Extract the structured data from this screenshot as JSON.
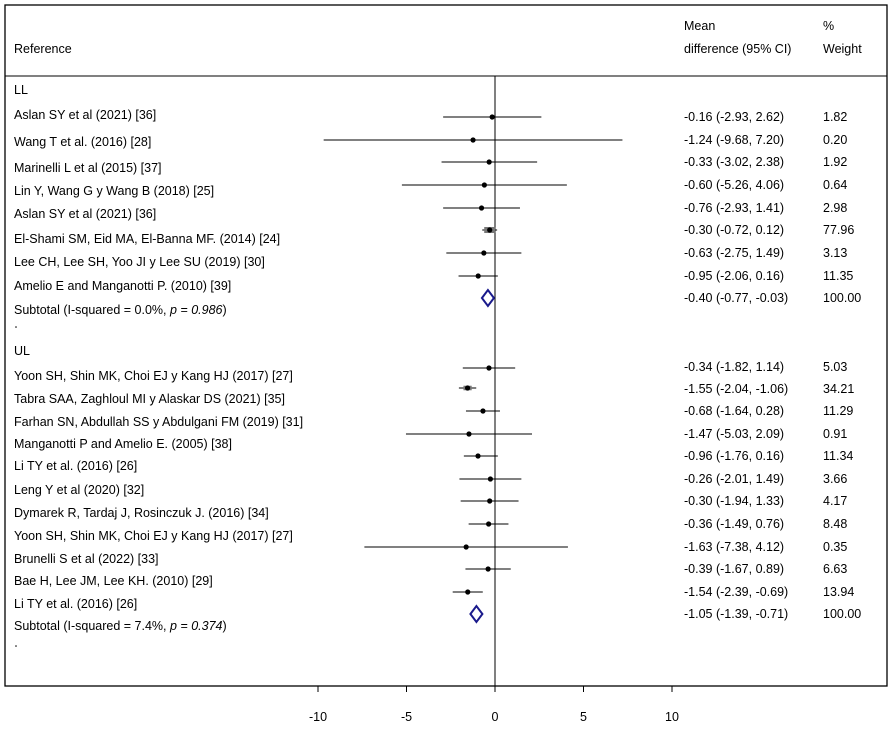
{
  "header": {
    "reference": "Reference",
    "effect_line1": "Mean",
    "effect_line2": "difference (95% CI)",
    "weight_line1": "%",
    "weight_line2": "Weight"
  },
  "chart_data": {
    "type": "forest",
    "xlim": [
      -10,
      10
    ],
    "x_ticks": [
      -10,
      -5,
      0,
      5,
      10
    ],
    "groups": [
      {
        "name": "LL",
        "studies": [
          {
            "label": "Aslan SY et al (2021) [36]",
            "est": -0.16,
            "lo": -2.93,
            "hi": 2.62,
            "ci_text": "-0.16 (-2.93, 2.62)",
            "weight": "1.82"
          },
          {
            "label": "Wang T et al. (2016) [28]",
            "est": -1.24,
            "lo": -9.68,
            "hi": 7.2,
            "ci_text": "-1.24 (-9.68, 7.20)",
            "weight": "0.20"
          },
          {
            "label": "Marinelli L et al (2015) [37]",
            "est": -0.33,
            "lo": -3.02,
            "hi": 2.38,
            "ci_text": "-0.33 (-3.02, 2.38)",
            "weight": "1.92"
          },
          {
            "label": "Lin Y, Wang G y Wang B (2018) [25]",
            "est": -0.6,
            "lo": -5.26,
            "hi": 4.06,
            "ci_text": "-0.60 (-5.26, 4.06)",
            "weight": "0.64"
          },
          {
            "label": "Aslan SY et al (2021) [36]",
            "est": -0.76,
            "lo": -2.93,
            "hi": 1.41,
            "ci_text": "-0.76 (-2.93, 1.41)",
            "weight": "2.98"
          },
          {
            "label": "El-Shami SM, Eid MA, El-Banna MF. (2014) [24]",
            "est": -0.3,
            "lo": -0.72,
            "hi": 0.12,
            "ci_text": "-0.30 (-0.72, 0.12)",
            "weight": "77.96"
          },
          {
            "label": "Lee CH, Lee SH, Yoo JI y Lee SU (2019) [30]",
            "est": -0.63,
            "lo": -2.75,
            "hi": 1.49,
            "ci_text": "-0.63 (-2.75, 1.49)",
            "weight": "3.13"
          },
          {
            "label": "Amelio E  and  Manganotti P. (2010) [39]",
            "est": -0.95,
            "lo": -2.06,
            "hi": 0.16,
            "ci_text": "-0.95 (-2.06, 0.16)",
            "weight": "11.35"
          }
        ],
        "subtotal": {
          "label_prefix": "Subtotal  (I-squared = 0.0%, ",
          "label_p": "p = 0.986",
          "label_suffix": ")",
          "est": -0.4,
          "lo": -0.77,
          "hi": -0.03,
          "ci_text": "-0.40 (-0.77, -0.03)",
          "weight": "100.00"
        }
      },
      {
        "name": "UL",
        "studies": [
          {
            "label": "Yoon SH, Shin MK, Choi EJ y Kang HJ (2017) [27]",
            "est": -0.34,
            "lo": -1.82,
            "hi": 1.14,
            "ci_text": "-0.34 (-1.82, 1.14)",
            "weight": "5.03"
          },
          {
            "label": "Tabra SAA, Zaghloul MI y Alaskar DS (2021) [35]",
            "est": -1.55,
            "lo": -2.04,
            "hi": -1.06,
            "ci_text": "-1.55 (-2.04, -1.06)",
            "weight": "34.21"
          },
          {
            "label": "Farhan SN, Abdullah SS y Abdulgani FM (2019) [31]",
            "est": -0.68,
            "lo": -1.64,
            "hi": 0.28,
            "ci_text": "-0.68 (-1.64, 0.28)",
            "weight": "11.29"
          },
          {
            "label": "Manganotti P and Amelio E. (2005) [38]",
            "est": -1.47,
            "lo": -5.03,
            "hi": 2.09,
            "ci_text": "-1.47 (-5.03, 2.09)",
            "weight": "0.91"
          },
          {
            "label": "Li TY et al. (2016) [26]",
            "est": -0.96,
            "lo": -1.76,
            "hi": 0.16,
            "ci_text": "-0.96 (-1.76, 0.16)",
            "weight": "11.34"
          },
          {
            "label": "Leng Y et al (2020) [32]",
            "est": -0.26,
            "lo": -2.01,
            "hi": 1.49,
            "ci_text": "-0.26 (-2.01, 1.49)",
            "weight": "3.66"
          },
          {
            "label": "Dymarek R, Tardaj J, Rosinczuk J. (2016) [34]",
            "est": -0.3,
            "lo": -1.94,
            "hi": 1.33,
            "ci_text": "-0.30 (-1.94, 1.33)",
            "weight": "4.17"
          },
          {
            "label": "Yoon SH, Shin MK, Choi EJ y Kang HJ (2017) [27]",
            "est": -0.36,
            "lo": -1.49,
            "hi": 0.76,
            "ci_text": "-0.36 (-1.49, 0.76)",
            "weight": "8.48"
          },
          {
            "label": "Brunelli S et al (2022) [33]",
            "est": -1.63,
            "lo": -7.38,
            "hi": 4.12,
            "ci_text": "-1.63 (-7.38, 4.12)",
            "weight": "0.35"
          },
          {
            "label": "Bae H, Lee JM, Lee KH. (2010) [29]",
            "est": -0.39,
            "lo": -1.67,
            "hi": 0.89,
            "ci_text": "-0.39 (-1.67, 0.89)",
            "weight": "6.63"
          },
          {
            "label": "Li TY et al. (2016) [26]",
            "est": -1.54,
            "lo": -2.39,
            "hi": -0.69,
            "ci_text": "-1.54 (-2.39, -0.69)",
            "weight": "13.94"
          }
        ],
        "subtotal": {
          "label_prefix": "Subtotal  (I-squared = 7.4%, ",
          "label_p": "p = 0.374",
          "label_suffix": ")",
          "est": -1.05,
          "lo": -1.39,
          "hi": -0.71,
          "ci_text": "-1.05 (-1.39, -0.71)",
          "weight": "100.00"
        }
      }
    ],
    "colors": {
      "diamond": "#1a1a8c",
      "marks": "#000000",
      "frame": "#000000"
    }
  }
}
